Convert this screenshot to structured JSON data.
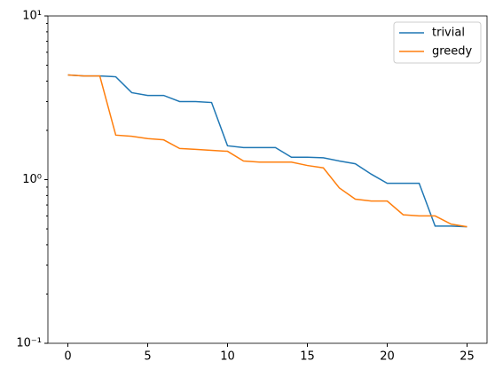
{
  "chart_data": {
    "type": "line",
    "log_y": true,
    "legend": "upper right",
    "x": [
      0,
      1,
      2,
      3,
      4,
      5,
      6,
      7,
      8,
      9,
      10,
      11,
      12,
      13,
      14,
      15,
      16,
      17,
      18,
      19,
      20,
      21,
      22,
      23,
      24,
      25
    ],
    "series": [
      {
        "name": "trivial",
        "color": "#1f77b4",
        "values": [
          4.36,
          4.3,
          4.3,
          4.25,
          3.4,
          3.27,
          3.27,
          3.0,
          3.0,
          2.96,
          1.61,
          1.57,
          1.57,
          1.57,
          1.37,
          1.37,
          1.36,
          1.3,
          1.25,
          1.08,
          0.95,
          0.95,
          0.95,
          0.52,
          0.52,
          0.515
        ]
      },
      {
        "name": "greedy",
        "color": "#ff7f0e",
        "values": [
          4.36,
          4.3,
          4.3,
          1.87,
          1.84,
          1.78,
          1.75,
          1.55,
          1.53,
          1.51,
          1.49,
          1.3,
          1.28,
          1.28,
          1.28,
          1.22,
          1.18,
          0.89,
          0.76,
          0.74,
          0.74,
          0.61,
          0.6,
          0.6,
          0.535,
          0.515
        ]
      }
    ],
    "xlim": [
      -1.25,
      26.25
    ],
    "xticks": [
      0,
      5,
      10,
      15,
      20,
      25
    ],
    "ylim": [
      0.1,
      10
    ],
    "yticks": [
      {
        "value": 0.1,
        "label": "10⁻¹"
      },
      {
        "value": 1,
        "label": "10⁰"
      },
      {
        "value": 10,
        "label": "10¹"
      }
    ],
    "yminorticks": [
      0.2,
      0.3,
      0.4,
      0.5,
      0.6,
      0.7,
      0.8,
      0.9,
      2,
      3,
      4,
      5,
      6,
      7,
      8,
      9
    ]
  }
}
